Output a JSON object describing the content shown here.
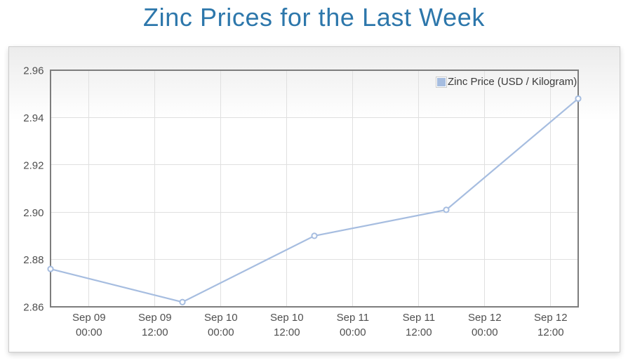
{
  "chart_data": {
    "type": "line",
    "title": "Zinc Prices for the Last Week",
    "legend_position": "top-right",
    "grid": true,
    "series": [
      {
        "name": "Zinc Price (USD / Kilogram)",
        "x_hours": [
          0,
          24,
          48,
          72,
          96
        ],
        "values": [
          2.876,
          2.862,
          2.89,
          2.901,
          2.948
        ]
      }
    ],
    "x_axis": {
      "min_hours": 0,
      "max_hours": 96,
      "tick_hours": [
        7,
        19,
        31,
        43,
        55,
        67,
        79,
        91
      ],
      "tick_labels": [
        [
          "Sep 09",
          "00:00"
        ],
        [
          "Sep 09",
          "12:00"
        ],
        [
          "Sep 10",
          "00:00"
        ],
        [
          "Sep 10",
          "12:00"
        ],
        [
          "Sep 11",
          "00:00"
        ],
        [
          "Sep 11",
          "12:00"
        ],
        [
          "Sep 12",
          "00:00"
        ],
        [
          "Sep 12",
          "12:00"
        ]
      ]
    },
    "y_axis": {
      "min": 2.86,
      "max": 2.96,
      "step": 0.02,
      "tick_labels": [
        "2.96",
        "2.94",
        "2.92",
        "2.90",
        "2.88",
        "2.86"
      ]
    },
    "colors": {
      "title": "#2d77ab",
      "series": "#a6bde0",
      "marker_fill": "#ffffff",
      "plot_border": "#7d7d7d",
      "gridline": "#e0e0e0",
      "axis_label": "#4f4f4f",
      "legend_text": "#3a3a3a",
      "panel_bg_top": "#ececec",
      "panel_bg_bottom": "#ffffff",
      "panel_border": "#cccccc"
    }
  }
}
